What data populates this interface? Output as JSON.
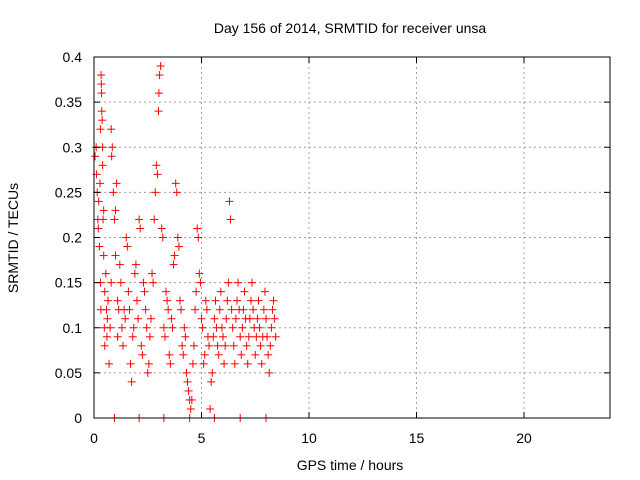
{
  "chart_data": {
    "type": "scatter",
    "title": "Day 156 of 2014, SRMTID for receiver unsa",
    "xlabel": "GPS time / hours",
    "ylabel": "SRMTID / TECUs",
    "xlim": [
      0,
      24
    ],
    "ylim": [
      0,
      0.4
    ],
    "xticks": [
      0,
      5,
      10,
      15,
      20
    ],
    "yticks": [
      0,
      0.05,
      0.1,
      0.15,
      0.2,
      0.25,
      0.3,
      0.35,
      0.4
    ],
    "xtick_labels": [
      "0",
      "5",
      "10",
      "15",
      "20"
    ],
    "ytick_labels": [
      "0",
      "0.05",
      "0.1",
      "0.15",
      "0.2",
      "0.25",
      "0.3",
      "0.35",
      "0.4"
    ],
    "grid": true,
    "marker": "+",
    "color": "#ff0000",
    "series": [
      {
        "name": "SRMTID",
        "points": [
          [
            0.05,
            0.29
          ],
          [
            0.1,
            0.3
          ],
          [
            0.12,
            0.27
          ],
          [
            0.15,
            0.25
          ],
          [
            0.18,
            0.22
          ],
          [
            0.2,
            0.21
          ],
          [
            0.22,
            0.24
          ],
          [
            0.25,
            0.19
          ],
          [
            0.28,
            0.26
          ],
          [
            0.3,
            0.32
          ],
          [
            0.3,
            0.15
          ],
          [
            0.32,
            0.12
          ],
          [
            0.33,
            0.38
          ],
          [
            0.34,
            0.37
          ],
          [
            0.35,
            0.36
          ],
          [
            0.36,
            0.34
          ],
          [
            0.38,
            0.33
          ],
          [
            0.4,
            0.3
          ],
          [
            0.4,
            0.28
          ],
          [
            0.42,
            0.22
          ],
          [
            0.45,
            0.23
          ],
          [
            0.45,
            0.18
          ],
          [
            0.48,
            0.1
          ],
          [
            0.5,
            0.08
          ],
          [
            0.5,
            0.14
          ],
          [
            0.55,
            0.16
          ],
          [
            0.58,
            0.12
          ],
          [
            0.6,
            0.09
          ],
          [
            0.62,
            0.11
          ],
          [
            0.65,
            0.13
          ],
          [
            0.7,
            0.06
          ],
          [
            0.75,
            0.1
          ],
          [
            0.8,
            0.15
          ],
          [
            0.8,
            0.32
          ],
          [
            0.82,
            0.29
          ],
          [
            0.85,
            0.3
          ],
          [
            0.9,
            0.25
          ],
          [
            0.95,
            0.22
          ],
          [
            1.0,
            0.18
          ],
          [
            1.0,
            0.23
          ],
          [
            1.05,
            0.26
          ],
          [
            1.1,
            0.09
          ],
          [
            1.1,
            0.13
          ],
          [
            1.15,
            0.12
          ],
          [
            1.2,
            0.17
          ],
          [
            1.25,
            0.15
          ],
          [
            1.3,
            0.1
          ],
          [
            1.35,
            0.08
          ],
          [
            1.4,
            0.12
          ],
          [
            1.45,
            0.11
          ],
          [
            1.5,
            0.2
          ],
          [
            1.55,
            0.19
          ],
          [
            1.6,
            0.14
          ],
          [
            1.65,
            0.12
          ],
          [
            1.7,
            0.06
          ],
          [
            1.75,
            0.04
          ],
          [
            1.8,
            0.09
          ],
          [
            1.85,
            0.1
          ],
          [
            1.9,
            0.16
          ],
          [
            1.95,
            0.17
          ],
          [
            2.0,
            0.13
          ],
          [
            2.05,
            0.11
          ],
          [
            2.1,
            0.22
          ],
          [
            2.15,
            0.21
          ],
          [
            2.2,
            0.08
          ],
          [
            2.25,
            0.07
          ],
          [
            2.3,
            0.15
          ],
          [
            2.35,
            0.14
          ],
          [
            2.4,
            0.12
          ],
          [
            2.45,
            0.1
          ],
          [
            2.5,
            0.05
          ],
          [
            2.55,
            0.06
          ],
          [
            2.6,
            0.09
          ],
          [
            2.65,
            0.11
          ],
          [
            2.7,
            0.16
          ],
          [
            2.75,
            0.15
          ],
          [
            2.8,
            0.22
          ],
          [
            2.85,
            0.25
          ],
          [
            2.9,
            0.28
          ],
          [
            2.95,
            0.27
          ],
          [
            3.0,
            0.34
          ],
          [
            3.02,
            0.36
          ],
          [
            3.05,
            0.38
          ],
          [
            3.1,
            0.39
          ],
          [
            3.15,
            0.21
          ],
          [
            3.2,
            0.2
          ],
          [
            3.25,
            0.1
          ],
          [
            3.3,
            0.09
          ],
          [
            3.35,
            0.14
          ],
          [
            3.4,
            0.13
          ],
          [
            3.45,
            0.12
          ],
          [
            3.5,
            0.07
          ],
          [
            3.55,
            0.06
          ],
          [
            3.6,
            0.11
          ],
          [
            3.65,
            0.1
          ],
          [
            3.7,
            0.17
          ],
          [
            3.75,
            0.18
          ],
          [
            3.8,
            0.26
          ],
          [
            3.85,
            0.25
          ],
          [
            3.9,
            0.2
          ],
          [
            3.95,
            0.19
          ],
          [
            4.0,
            0.13
          ],
          [
            4.05,
            0.12
          ],
          [
            4.1,
            0.08
          ],
          [
            4.15,
            0.07
          ],
          [
            4.2,
            0.1
          ],
          [
            4.25,
            0.09
          ],
          [
            4.3,
            0.05
          ],
          [
            4.35,
            0.04
          ],
          [
            4.4,
            0.03
          ],
          [
            4.45,
            0.02
          ],
          [
            4.5,
            0.01
          ],
          [
            4.55,
            0.02
          ],
          [
            4.6,
            0.06
          ],
          [
            4.65,
            0.08
          ],
          [
            4.7,
            0.12
          ],
          [
            4.75,
            0.14
          ],
          [
            4.8,
            0.21
          ],
          [
            4.85,
            0.2
          ],
          [
            4.9,
            0.16
          ],
          [
            4.95,
            0.15
          ],
          [
            5.0,
            0.11
          ],
          [
            5.05,
            0.1
          ],
          [
            5.1,
            0.06
          ],
          [
            5.15,
            0.07
          ],
          [
            5.2,
            0.13
          ],
          [
            5.25,
            0.12
          ],
          [
            5.3,
            0.09
          ],
          [
            5.35,
            0.08
          ],
          [
            5.4,
            0.01
          ],
          [
            5.45,
            0.04
          ],
          [
            5.5,
            0.05
          ],
          [
            5.55,
            0.09
          ],
          [
            5.6,
            0.11
          ],
          [
            5.65,
            0.13
          ],
          [
            5.7,
            0.1
          ],
          [
            5.75,
            0.08
          ],
          [
            5.8,
            0.07
          ],
          [
            5.85,
            0.12
          ],
          [
            5.9,
            0.14
          ],
          [
            5.95,
            0.1
          ],
          [
            6.0,
            0.09
          ],
          [
            6.05,
            0.06
          ],
          [
            6.1,
            0.08
          ],
          [
            6.15,
            0.11
          ],
          [
            6.2,
            0.13
          ],
          [
            6.25,
            0.15
          ],
          [
            6.3,
            0.24
          ],
          [
            6.35,
            0.22
          ],
          [
            6.4,
            0.12
          ],
          [
            6.45,
            0.1
          ],
          [
            6.5,
            0.08
          ],
          [
            6.55,
            0.06
          ],
          [
            6.6,
            0.11
          ],
          [
            6.65,
            0.13
          ],
          [
            6.7,
            0.15
          ],
          [
            6.75,
            0.12
          ],
          [
            6.8,
            0.09
          ],
          [
            6.85,
            0.07
          ],
          [
            6.9,
            0.1
          ],
          [
            6.95,
            0.12
          ],
          [
            7.0,
            0.14
          ],
          [
            7.05,
            0.11
          ],
          [
            7.1,
            0.08
          ],
          [
            7.15,
            0.06
          ],
          [
            7.2,
            0.09
          ],
          [
            7.25,
            0.11
          ],
          [
            7.3,
            0.13
          ],
          [
            7.35,
            0.15
          ],
          [
            7.4,
            0.12
          ],
          [
            7.45,
            0.1
          ],
          [
            7.5,
            0.07
          ],
          [
            7.55,
            0.09
          ],
          [
            7.6,
            0.11
          ],
          [
            7.65,
            0.13
          ],
          [
            7.7,
            0.1
          ],
          [
            7.75,
            0.08
          ],
          [
            7.8,
            0.06
          ],
          [
            7.85,
            0.09
          ],
          [
            7.9,
            0.12
          ],
          [
            7.95,
            0.14
          ],
          [
            8.0,
            0.11
          ],
          [
            8.05,
            0.09
          ],
          [
            8.1,
            0.07
          ],
          [
            8.15,
            0.05
          ],
          [
            8.2,
            0.08
          ],
          [
            8.25,
            0.1
          ],
          [
            8.3,
            0.12
          ],
          [
            8.35,
            0.13
          ],
          [
            8.4,
            0.11
          ],
          [
            8.45,
            0.09
          ],
          [
            0.95,
            0.0
          ],
          [
            2.1,
            0.0
          ],
          [
            3.25,
            0.0
          ],
          [
            4.45,
            0.0
          ],
          [
            5.6,
            0.0
          ],
          [
            6.8,
            0.0
          ],
          [
            8.0,
            0.0
          ]
        ]
      }
    ]
  }
}
